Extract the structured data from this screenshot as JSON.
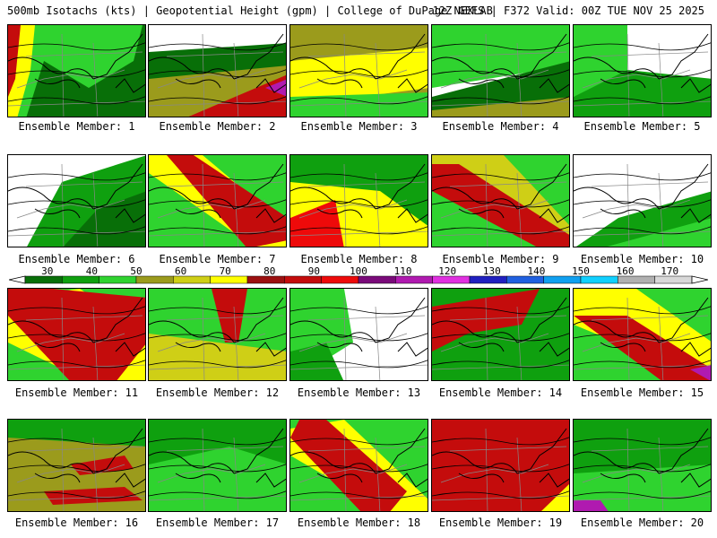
{
  "header": {
    "title_left": "500mb Isotachs (kts) | Geopotential Height (gpm) | College of DuPage NEXLAB",
    "title_right": "12Z GEFS | F372 Valid: 00Z TUE NOV 25 2025"
  },
  "colors": {
    "palette": [
      "#086f08",
      "#0fa00f",
      "#2fd32f",
      "#9b9b1c",
      "#cfcf16",
      "#ffff00",
      "#9c1010",
      "#c40c0c",
      "#ee0a0a",
      "#7a0a7a",
      "#b01ab0",
      "#e030e0",
      "#2020c0",
      "#2060e0",
      "#10a0f0",
      "#10d0ff",
      "#b0b0b0",
      "#d8d8d8"
    ],
    "land": "#ffffff",
    "border": "#000000"
  },
  "colorbar": {
    "ticks": [
      "30",
      "40",
      "50",
      "60",
      "70",
      "80",
      "90",
      "100",
      "110",
      "120",
      "130",
      "140",
      "150",
      "160",
      "170"
    ]
  },
  "members": [
    {
      "label": "Ensemble Member: 1"
    },
    {
      "label": "Ensemble Member: 2"
    },
    {
      "label": "Ensemble Member: 3"
    },
    {
      "label": "Ensemble Member: 4"
    },
    {
      "label": "Ensemble Member: 5"
    },
    {
      "label": "Ensemble Member: 6"
    },
    {
      "label": "Ensemble Member: 7"
    },
    {
      "label": "Ensemble Member: 8"
    },
    {
      "label": "Ensemble Member: 9"
    },
    {
      "label": "Ensemble Member: 10"
    },
    {
      "label": "Ensemble Member: 11"
    },
    {
      "label": "Ensemble Member: 12"
    },
    {
      "label": "Ensemble Member: 13"
    },
    {
      "label": "Ensemble Member: 14"
    },
    {
      "label": "Ensemble Member: 15"
    },
    {
      "label": "Ensemble Member: 16"
    },
    {
      "label": "Ensemble Member: 17"
    },
    {
      "label": "Ensemble Member: 18"
    },
    {
      "label": "Ensemble Member: 19"
    },
    {
      "label": "Ensemble Member: 20"
    }
  ]
}
